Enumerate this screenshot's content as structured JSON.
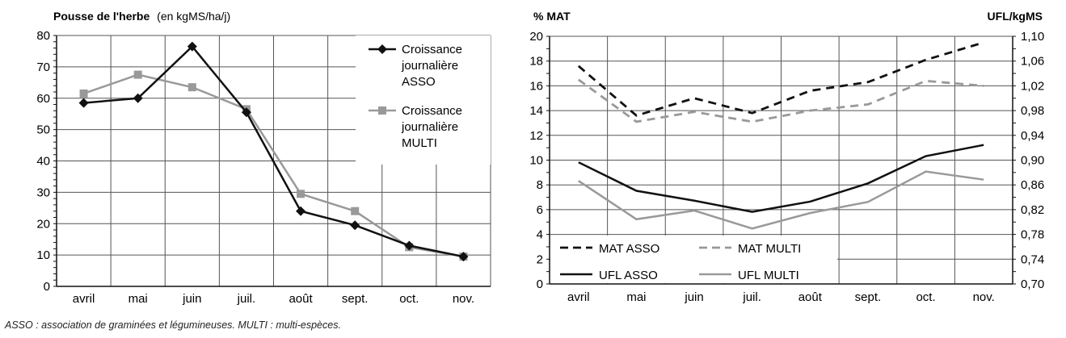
{
  "footnote": "ASSO : association de graminées et légumineuses. MULTI : multi-espèces.",
  "chart_data": [
    {
      "type": "line",
      "title_bold": "Pousse de l'herbe",
      "title_rest": "(en kgMS/ha/j)",
      "categories": [
        "avril",
        "mai",
        "juin",
        "juil.",
        "août",
        "sept.",
        "oct.",
        "nov."
      ],
      "ylim": [
        0,
        80
      ],
      "yticks": [
        "0",
        "10",
        "20",
        "30",
        "40",
        "50",
        "60",
        "70",
        "80"
      ],
      "grid": true,
      "legend_position": "top-right",
      "series": [
        {
          "name_lines": [
            "Croissance",
            "journalière",
            "ASSO"
          ],
          "marker": "diamond",
          "color": "#111111",
          "values": [
            58.5,
            60,
            76.5,
            55.5,
            24,
            19.5,
            13,
            9.5
          ]
        },
        {
          "name_lines": [
            "Croissance",
            "journalière",
            "MULTI"
          ],
          "marker": "square",
          "color": "#999999",
          "values": [
            61.5,
            67.5,
            63.5,
            56.5,
            29.5,
            24,
            12.5,
            9.5
          ]
        }
      ]
    },
    {
      "type": "line",
      "ylabel_left": "% MAT",
      "ylabel_right": "UFL/kgMS",
      "categories": [
        "avril",
        "mai",
        "juin",
        "juil.",
        "août",
        "sept.",
        "oct.",
        "nov."
      ],
      "ylim_left": [
        0,
        20
      ],
      "yticks_left": [
        "0",
        "2",
        "4",
        "6",
        "8",
        "10",
        "12",
        "14",
        "16",
        "18",
        "20"
      ],
      "ylim_right": [
        0.7,
        1.1
      ],
      "yticks_right": [
        "0,70",
        "0,74",
        "0,78",
        "0,82",
        "0,86",
        "0,90",
        "0,94",
        "0,98",
        "1,02",
        "1,06",
        "1,10"
      ],
      "grid": true,
      "legend_position": "bottom-left",
      "series": [
        {
          "name": "MAT ASSO",
          "axis": "left",
          "dash": true,
          "color": "#111111",
          "values": [
            17.6,
            13.6,
            15.0,
            13.8,
            15.6,
            16.3,
            18.1,
            19.5
          ]
        },
        {
          "name": "MAT MULTI",
          "axis": "left",
          "dash": true,
          "color": "#999999",
          "values": [
            16.5,
            13.1,
            13.9,
            13.1,
            14.0,
            14.5,
            16.4,
            16.0
          ]
        },
        {
          "name": "UFL ASSO",
          "axis": "right",
          "dash": false,
          "color": "#111111",
          "values": [
            0.8965,
            0.8505,
            0.8345,
            0.8165,
            0.833,
            0.8625,
            0.9065,
            0.9245
          ]
        },
        {
          "name": "UFL MULTI",
          "axis": "right",
          "dash": false,
          "color": "#999999",
          "values": [
            0.8665,
            0.8045,
            0.8185,
            0.7895,
            0.8145,
            0.8325,
            0.8815,
            0.8685
          ]
        }
      ]
    }
  ]
}
